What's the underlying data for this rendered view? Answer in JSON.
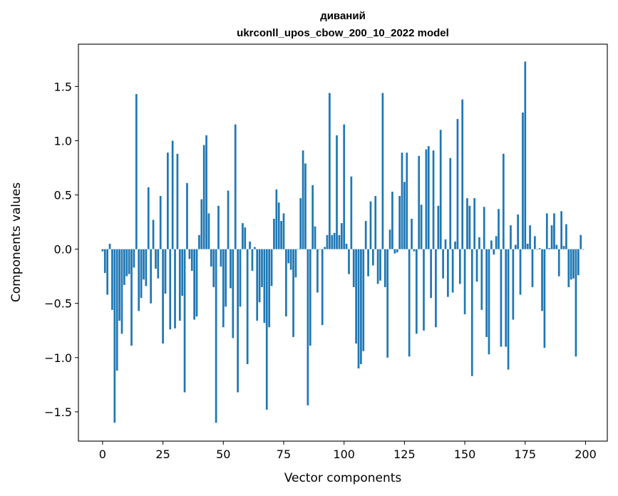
{
  "chart_data": {
    "type": "bar",
    "title": "диваний",
    "subtitle": "ukrconll_upos_cbow_200_10_2022 model",
    "xlabel": "Vector components",
    "ylabel": "Components values",
    "xlim": [
      -10,
      209
    ],
    "ylim": [
      -1.77,
      1.89
    ],
    "x_ticks": [
      0,
      25,
      50,
      75,
      100,
      125,
      150,
      175,
      200
    ],
    "y_ticks": [
      -1.5,
      -1.0,
      -0.5,
      0.0,
      0.5,
      1.0,
      1.5
    ],
    "bar_color": "#1f77b4",
    "grid": false,
    "values": [
      -0.02,
      -0.22,
      -0.42,
      0.05,
      -0.56,
      -1.6,
      -1.12,
      -0.66,
      -0.78,
      -0.33,
      -0.25,
      -0.23,
      -0.89,
      -0.17,
      1.43,
      -0.57,
      -0.45,
      -0.28,
      -0.34,
      0.57,
      -0.5,
      0.27,
      -0.18,
      -0.27,
      0.49,
      -0.87,
      -0.41,
      0.89,
      -0.74,
      1.0,
      -0.73,
      0.88,
      -0.66,
      -0.43,
      -1.32,
      0.61,
      -0.09,
      -0.2,
      -0.65,
      -0.62,
      0.13,
      0.46,
      0.96,
      1.05,
      0.33,
      -0.16,
      -0.35,
      -1.6,
      0.4,
      -0.16,
      -0.72,
      -0.53,
      0.54,
      -0.36,
      -0.82,
      1.15,
      -1.32,
      -0.53,
      0.24,
      0.2,
      -1.06,
      0.07,
      -0.2,
      0.02,
      -0.66,
      -0.49,
      -0.35,
      -0.68,
      -1.48,
      -0.72,
      -0.34,
      0.28,
      0.55,
      0.43,
      0.26,
      0.33,
      -0.62,
      -0.13,
      -0.19,
      -0.81,
      -0.26,
      0.0,
      0.47,
      0.91,
      0.79,
      -1.44,
      -0.89,
      0.59,
      0.21,
      -0.4,
      0.0,
      -0.7,
      0.02,
      0.13,
      1.44,
      0.13,
      0.15,
      1.05,
      0.13,
      0.24,
      1.15,
      0.05,
      -0.23,
      0.67,
      -0.35,
      -0.87,
      -1.1,
      -1.06,
      -0.94,
      0.26,
      -0.25,
      0.44,
      -0.15,
      0.49,
      -0.32,
      -0.29,
      1.44,
      -0.35,
      -1.0,
      0.18,
      0.53,
      -0.04,
      -0.03,
      0.49,
      0.89,
      0.62,
      0.89,
      -0.99,
      0.28,
      -0.02,
      -0.78,
      0.86,
      0.41,
      -0.75,
      0.92,
      0.95,
      -0.45,
      0.91,
      -0.72,
      0.4,
      1.1,
      -0.27,
      0.09,
      -0.44,
      0.84,
      -0.4,
      0.07,
      1.2,
      -0.32,
      1.38,
      -0.6,
      0.47,
      0.4,
      -1.17,
      0.47,
      -0.3,
      0.11,
      -0.56,
      0.39,
      -0.81,
      -0.97,
      0.08,
      -0.05,
      0.12,
      0.37,
      -0.9,
      0.88,
      -0.9,
      -1.11,
      0.22,
      -0.65,
      0.04,
      0.32,
      -0.42,
      1.26,
      1.73,
      0.05,
      0.22,
      -0.35,
      0.12,
      0.0,
      0.01,
      -0.57,
      -0.91,
      0.33,
      0.01,
      0.22,
      0.33,
      0.04,
      -0.25,
      0.35,
      0.03,
      0.23,
      -0.35,
      -0.28,
      -0.27,
      -0.99,
      -0.24,
      0.13,
      0.0
    ]
  }
}
